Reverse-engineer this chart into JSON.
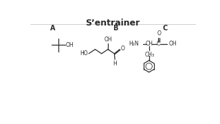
{
  "title": "S’entrainer",
  "title_fontsize": 9,
  "title_fontweight": "bold",
  "line_color": "#2a2a2a",
  "text_color": "#2a2a2a",
  "label_A": "A",
  "label_B": "B",
  "label_C": "C",
  "label_fontsize": 7,
  "chem_fontsize": 5.5
}
